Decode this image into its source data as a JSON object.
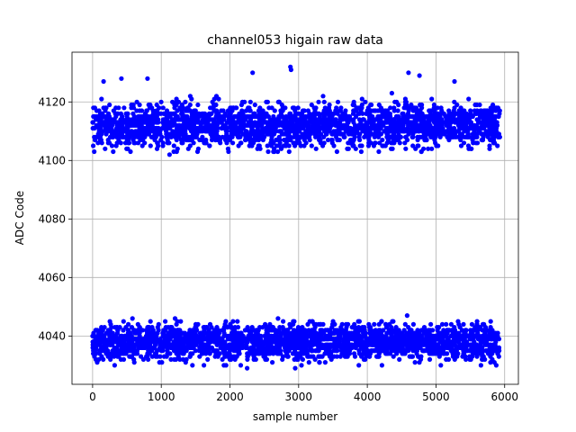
{
  "chart_data": {
    "type": "scatter",
    "title": "channel053 higain raw data",
    "xlabel": "sample number",
    "ylabel": "ADC Code",
    "xlim": [
      -300,
      6200
    ],
    "ylim": [
      4023.5,
      4137
    ],
    "xticks": [
      0,
      1000,
      2000,
      3000,
      4000,
      5000,
      6000
    ],
    "xtick_labels": [
      "0",
      "1000",
      "2000",
      "3000",
      "4000",
      "5000",
      "6000"
    ],
    "yticks": [
      4040,
      4060,
      4080,
      4100,
      4120
    ],
    "ytick_labels": [
      "4040",
      "4060",
      "4080",
      "4100",
      "4120"
    ],
    "grid": true,
    "marker_color": "#0000ff",
    "marker": "circle",
    "sample_range": [
      0,
      5930
    ],
    "series": [
      {
        "band": "high",
        "center": 4112,
        "core_range": [
          4106,
          4118
        ],
        "full_range": [
          4102,
          4132
        ],
        "outliers": [
          {
            "x": 2330,
            "y": 4130
          },
          {
            "x": 2880,
            "y": 4132
          },
          {
            "x": 2890,
            "y": 4131
          },
          {
            "x": 4600,
            "y": 4130
          },
          {
            "x": 4760,
            "y": 4129
          },
          {
            "x": 800,
            "y": 4128
          },
          {
            "x": 420,
            "y": 4128
          },
          {
            "x": 5270,
            "y": 4127
          },
          {
            "x": 160,
            "y": 4127
          },
          {
            "x": 1120,
            "y": 4102
          }
        ]
      },
      {
        "band": "low",
        "center": 4038,
        "core_range": [
          4033,
          4043
        ],
        "full_range": [
          4029,
          4047
        ],
        "outliers": [
          {
            "x": 4580,
            "y": 4047
          },
          {
            "x": 2700,
            "y": 4046
          },
          {
            "x": 580,
            "y": 4046
          },
          {
            "x": 1200,
            "y": 4046
          },
          {
            "x": 2250,
            "y": 4029
          },
          {
            "x": 2950,
            "y": 4029
          },
          {
            "x": 5070,
            "y": 4030
          },
          {
            "x": 5850,
            "y": 4031
          }
        ]
      }
    ]
  }
}
